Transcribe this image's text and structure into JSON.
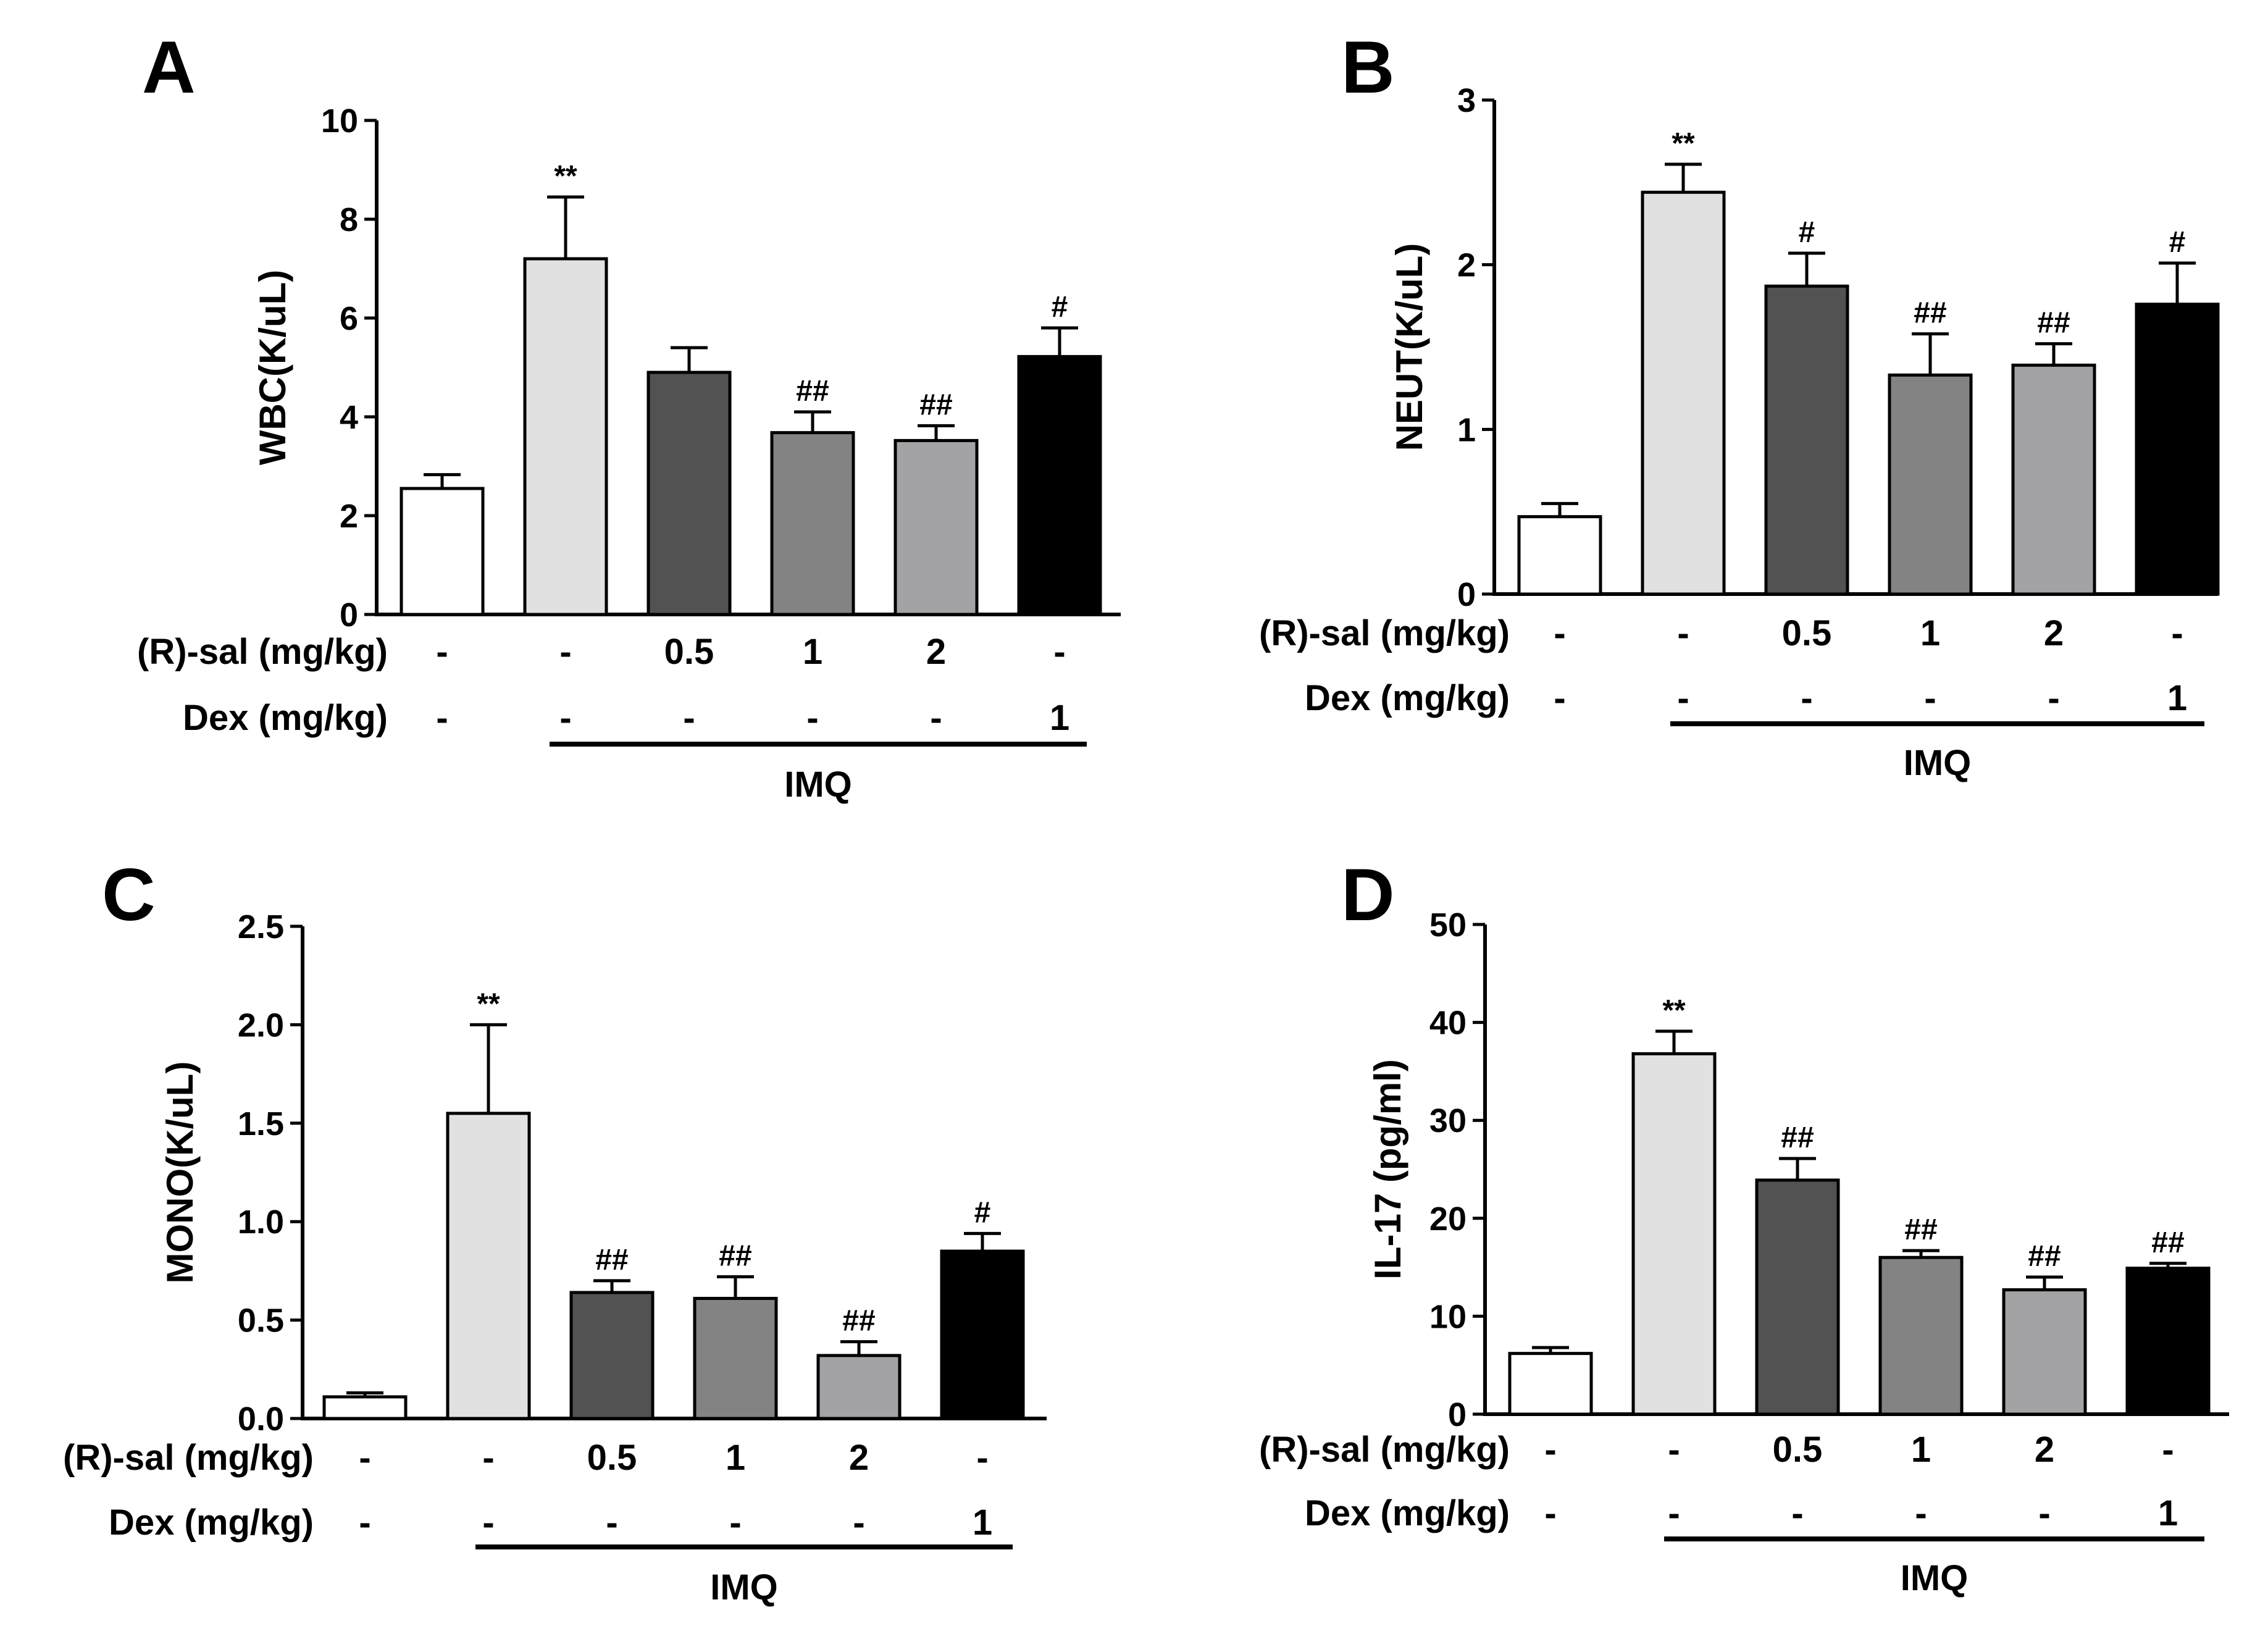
{
  "colors": {
    "control": "#ffffff",
    "imq": "#e1e1e1",
    "rsal_0_5": "#525252",
    "rsal_1": "#838383",
    "rsal_2": "#a3a3a6",
    "dex": "#000000",
    "outline": "#000000"
  },
  "treatment_table": {
    "rsal_label": "(R)-sal (mg/kg)",
    "dex_label": "Dex (mg/kg)",
    "rsal_values": [
      "-",
      "-",
      "0.5",
      "1",
      "2",
      "-"
    ],
    "dex_values": [
      "-",
      "-",
      "-",
      "-",
      "-",
      "1"
    ],
    "group_bar_label": "IMQ"
  },
  "chart_data": [
    {
      "panel": "A",
      "type": "bar",
      "ylabel": "WBC(K/uL)",
      "ylim": [
        0,
        10
      ],
      "yticks": [
        "0",
        "2",
        "4",
        "6",
        "8",
        "10"
      ],
      "values": [
        2.55,
        7.2,
        4.9,
        3.68,
        3.52,
        5.22
      ],
      "errors": [
        0.28,
        1.25,
        0.5,
        0.42,
        0.3,
        0.58
      ],
      "annotations": [
        "",
        "**",
        "",
        "##",
        "##",
        "#"
      ]
    },
    {
      "panel": "B",
      "type": "bar",
      "ylabel": "NEUT(K/uL)",
      "ylim": [
        0,
        3
      ],
      "yticks": [
        "0",
        "1",
        "2",
        "3"
      ],
      "values": [
        0.47,
        2.44,
        1.87,
        1.33,
        1.39,
        1.76
      ],
      "errors": [
        0.08,
        0.17,
        0.2,
        0.25,
        0.13,
        0.25
      ],
      "annotations": [
        "",
        "**",
        "#",
        "##",
        "##",
        "#"
      ]
    },
    {
      "panel": "C",
      "type": "bar",
      "ylabel": "MONO(K/uL)",
      "ylim": [
        0,
        2.5
      ],
      "yticks": [
        "0.0",
        "0.5",
        "1.0",
        "1.5",
        "2.0",
        "2.5"
      ],
      "values": [
        0.11,
        1.55,
        0.64,
        0.61,
        0.32,
        0.85
      ],
      "errors": [
        0.02,
        0.45,
        0.06,
        0.11,
        0.07,
        0.09
      ],
      "annotations": [
        "",
        "**",
        "##",
        "##",
        "##",
        "#"
      ]
    },
    {
      "panel": "D",
      "type": "bar",
      "ylabel": "IL-17 (pg/ml)",
      "ylim": [
        0,
        50
      ],
      "yticks": [
        "0",
        "10",
        "20",
        "30",
        "40",
        "50"
      ],
      "values": [
        6.2,
        36.8,
        23.9,
        16.0,
        12.7,
        14.9
      ],
      "errors": [
        0.6,
        2.3,
        2.2,
        0.7,
        1.3,
        0.5
      ],
      "annotations": [
        "",
        "**",
        "##",
        "##",
        "##",
        "##"
      ]
    }
  ]
}
